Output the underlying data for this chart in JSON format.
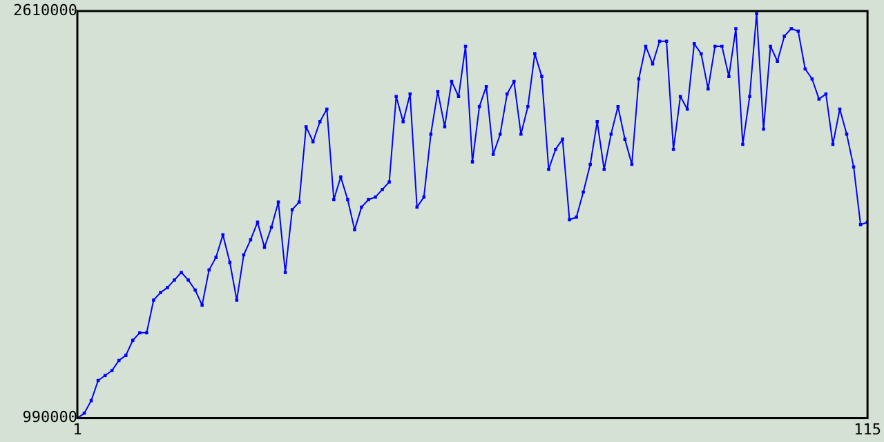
{
  "chart_data": {
    "type": "line",
    "x": [
      1,
      2,
      3,
      4,
      5,
      6,
      7,
      8,
      9,
      10,
      11,
      12,
      13,
      14,
      15,
      16,
      17,
      18,
      19,
      20,
      21,
      22,
      23,
      24,
      25,
      26,
      27,
      28,
      29,
      30,
      31,
      32,
      33,
      34,
      35,
      36,
      37,
      38,
      39,
      40,
      41,
      42,
      43,
      44,
      45,
      46,
      47,
      48,
      49,
      50,
      51,
      52,
      53,
      54,
      55,
      56,
      57,
      58,
      59,
      60,
      61,
      62,
      63,
      64,
      65,
      66,
      67,
      68,
      69,
      70,
      71,
      72,
      73,
      74,
      75,
      76,
      77,
      78,
      79,
      80,
      81,
      82,
      83,
      84,
      85,
      86,
      87,
      88,
      89,
      90,
      91,
      92,
      93,
      94,
      95,
      96,
      97,
      98,
      99,
      100,
      101,
      102,
      103,
      104,
      105,
      106,
      107,
      108,
      109,
      110,
      111,
      112,
      113,
      114,
      115
    ],
    "series": [
      {
        "color": "#0000ff",
        "values": [
          990000,
          1010000,
          1060000,
          1140000,
          1160000,
          1180000,
          1220000,
          1240000,
          1300000,
          1330000,
          1330000,
          1460000,
          1490000,
          1510000,
          1540000,
          1570000,
          1540000,
          1500000,
          1440000,
          1580000,
          1630000,
          1720000,
          1610000,
          1460000,
          1640000,
          1700000,
          1770000,
          1670000,
          1750000,
          1850000,
          1570000,
          1820000,
          1850000,
          2150000,
          2090000,
          2170000,
          2220000,
          1860000,
          1950000,
          1860000,
          1740000,
          1830000,
          1860000,
          1870000,
          1900000,
          1930000,
          2270000,
          2170000,
          2280000,
          1830000,
          1870000,
          2120000,
          2290000,
          2150000,
          2330000,
          2270000,
          2470000,
          2010000,
          2230000,
          2310000,
          2040000,
          2120000,
          2280000,
          2330000,
          2120000,
          2230000,
          2440000,
          2350000,
          1980000,
          2060000,
          2100000,
          1780000,
          1790000,
          1890000,
          2000000,
          2170000,
          1980000,
          2120000,
          2230000,
          2100000,
          2000000,
          2340000,
          2470000,
          2400000,
          2490000,
          2490000,
          2060000,
          2270000,
          2220000,
          2480000,
          2440000,
          2300000,
          2470000,
          2470000,
          2350000,
          2540000,
          2080000,
          2270000,
          2600000,
          2140000,
          2470000,
          2410000,
          2510000,
          2540000,
          2530000,
          2380000,
          2340000,
          2260000,
          2280000,
          2080000,
          2220000,
          2120000,
          1990000,
          1760000,
          1770000
        ]
      }
    ],
    "xlim": [
      1,
      115
    ],
    "xticks": [
      1,
      115
    ],
    "ylim": [
      990000,
      2610000
    ],
    "yticks": [
      990000,
      2610000
    ],
    "legend": false,
    "marker": "square",
    "line_style": "solid"
  }
}
